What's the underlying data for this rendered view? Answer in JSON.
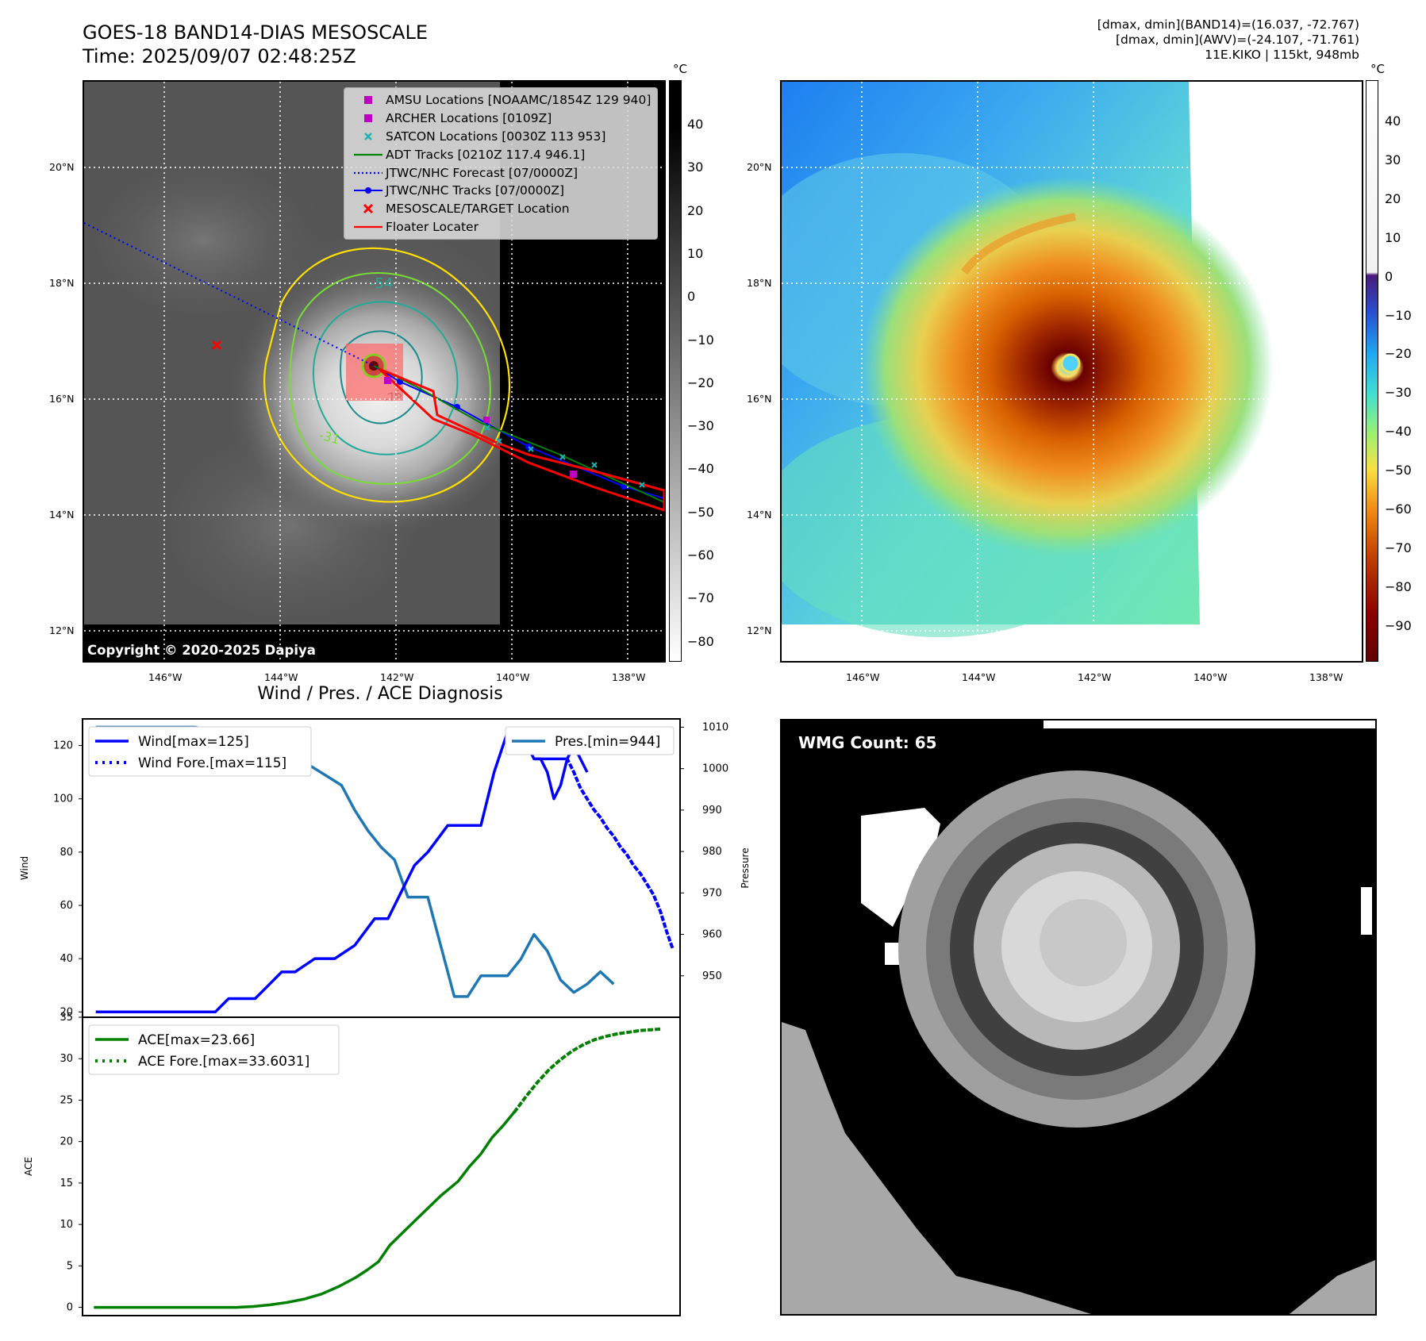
{
  "header": {
    "title_line1": "GOES-18 BAND14-DIAS MESOSCALE",
    "title_line2": "Time: 2025/09/07 02:48:25Z",
    "info_line1": "[dmax, dmin](BAND14)=(16.037, -72.767)",
    "info_line2": "[dmax, dmin](AWV)=(-24.107, -71.761)",
    "info_line3": "11E.KIKO | 115kt, 948mb"
  },
  "map": {
    "lat_labels": [
      "20°N",
      "18°N",
      "16°N",
      "14°N",
      "12°N"
    ],
    "lon_labels": [
      "146°W",
      "144°W",
      "142°W",
      "140°W",
      "138°W"
    ],
    "copyright": "Copyright © 2020-2025 Dapiya",
    "contour_labels": [
      "-54",
      "-31",
      "-76"
    ]
  },
  "legend_map": {
    "items": [
      {
        "label": "AMSU Locations [NOAAMC/1854Z 129 940]",
        "symbol": "square",
        "color": "#c000c0"
      },
      {
        "label": "ARCHER Locations [0109Z]",
        "symbol": "square",
        "color": "#c000c0"
      },
      {
        "label": "SATCON Locations [0030Z 113 953]",
        "symbol": "x-small",
        "color": "#1bb5b5"
      },
      {
        "label": "ADT Tracks [0210Z 117.4 946.1]",
        "symbol": "line",
        "color": "#008000"
      },
      {
        "label": "JTWC/NHC Forecast [07/0000Z]",
        "symbol": "dotted",
        "color": "#0000ff"
      },
      {
        "label": "JTWC/NHC Tracks [07/0000Z]",
        "symbol": "line-dot",
        "color": "#0000ff"
      },
      {
        "label": "MESOSCALE/TARGET Location",
        "symbol": "x-red",
        "color": "#ff0000"
      },
      {
        "label": "Floater Locater",
        "symbol": "line",
        "color": "#ff0000"
      }
    ]
  },
  "colorbar_gray": {
    "unit": "°C",
    "ticks": [
      "40",
      "30",
      "20",
      "10",
      "0",
      "−10",
      "−20",
      "−30",
      "−40",
      "−50",
      "−60",
      "−70",
      "−80"
    ]
  },
  "colorbar_color": {
    "unit": "°C",
    "ticks": [
      "40",
      "30",
      "20",
      "10",
      "0",
      "−10",
      "−20",
      "−30",
      "−40",
      "−50",
      "−60",
      "−70",
      "−80",
      "−90"
    ]
  },
  "wmg": {
    "count_label": "WMG Count: 65"
  },
  "chart_data": [
    {
      "type": "line",
      "title": "Wind / Pres. / ACE Diagnosis",
      "ylabel": "Wind",
      "ylabel_right": "Pressure",
      "ylim": [
        18,
        130
      ],
      "ylim_right": [
        940,
        1012
      ],
      "yticks": [
        20,
        40,
        60,
        80,
        100,
        120
      ],
      "yticks_right": [
        950,
        960,
        970,
        980,
        990,
        1000,
        1010
      ],
      "x_index_range": [
        -2,
        88
      ],
      "series": [
        {
          "name": "Wind[max=125]",
          "style": "solid",
          "color": "#0000ff",
          "x": [
            0,
            3,
            6,
            9,
            12,
            15,
            18,
            20,
            22,
            24,
            26,
            28,
            30,
            33,
            36,
            39,
            42,
            44,
            46,
            48,
            50,
            53,
            56,
            58,
            60,
            62,
            64,
            66,
            69,
            71
          ],
          "values": [
            20,
            20,
            20,
            20,
            20,
            20,
            20,
            25,
            25,
            25,
            30,
            35,
            35,
            40,
            40,
            45,
            55,
            55,
            65,
            75,
            80,
            90,
            90,
            90,
            110,
            125,
            125,
            115,
            115,
            115
          ]
        },
        {
          "name": "Wind Fore.[max=115]",
          "style": "dotted",
          "color": "#0000ff",
          "x": [
            71,
            72,
            73,
            74,
            75,
            76,
            77,
            78,
            79,
            80,
            81,
            82,
            83,
            84,
            85,
            86,
            87
          ],
          "values": [
            115,
            110,
            104,
            100,
            96,
            93,
            89,
            86,
            82,
            79,
            75,
            72,
            68,
            64,
            58,
            50,
            43
          ]
        }
      ],
      "series_extra": [
        {
          "name": "Wind (cont.)",
          "style": "solid",
          "color": "#0000ff",
          "x": [
            66,
            67,
            68,
            69,
            70,
            71,
            72,
            73,
            74
          ],
          "values": [
            115,
            115,
            110,
            100,
            105,
            115,
            120,
            115,
            110
          ]
        }
      ],
      "pressure_series": {
        "name": "Pres.[min=944]",
        "style": "solid",
        "color": "#1f77b4",
        "x": [
          0,
          5,
          10,
          15,
          18,
          20,
          22,
          24,
          26,
          28,
          30,
          33,
          35,
          37,
          39,
          41,
          43,
          45,
          47,
          48,
          50,
          52,
          54,
          56,
          58,
          60,
          62,
          64,
          66,
          68,
          70,
          72,
          74,
          76,
          78
        ],
        "values": [
          1010,
          1010,
          1010,
          1010,
          1009,
          1009,
          1008,
          1007,
          1006,
          1004,
          1003,
          1000,
          998,
          996,
          990,
          985,
          981,
          978,
          969,
          969,
          969,
          957,
          945,
          945,
          950,
          950,
          950,
          954,
          960,
          956,
          949,
          946,
          948,
          951,
          948
        ]
      }
    },
    {
      "type": "line",
      "ylabel": "ACE",
      "ylim": [
        -1,
        35
      ],
      "yticks": [
        0,
        5,
        10,
        15,
        20,
        25,
        30,
        35
      ],
      "series": [
        {
          "name": "ACE[max=23.66]",
          "style": "solid",
          "color": "#008000",
          "x": [
            0,
            10,
            20,
            25,
            28,
            31,
            34,
            37,
            40,
            43,
            46,
            48,
            50,
            52,
            55,
            58,
            61,
            64,
            66,
            68,
            70,
            72,
            74
          ],
          "values": [
            0,
            0,
            0,
            0,
            0.1,
            0.3,
            0.6,
            1.0,
            1.6,
            2.5,
            3.6,
            4.5,
            5.5,
            7.5,
            9.5,
            11.5,
            13.5,
            15.2,
            17,
            18.5,
            20.5,
            22,
            23.66
          ]
        },
        {
          "name": "ACE Fore.[max=33.6031]",
          "style": "dotted",
          "color": "#008000",
          "x": [
            74,
            76,
            78,
            80,
            82,
            84,
            86,
            88,
            90,
            92,
            94,
            96,
            98,
            100
          ],
          "values": [
            23.66,
            25.5,
            27.2,
            28.7,
            29.9,
            30.9,
            31.7,
            32.3,
            32.7,
            33.0,
            33.2,
            33.4,
            33.5,
            33.6
          ]
        }
      ]
    }
  ]
}
